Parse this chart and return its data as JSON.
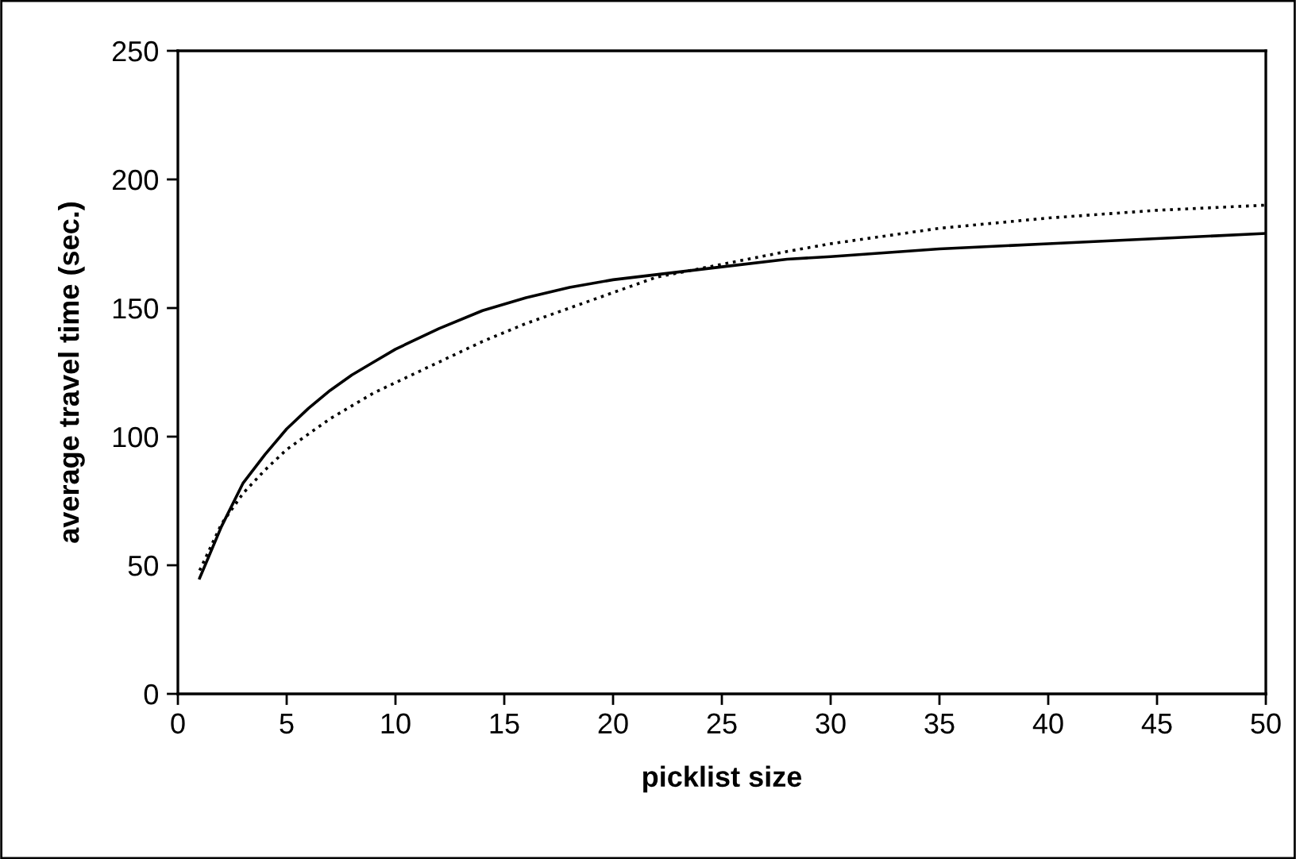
{
  "chart_data": {
    "type": "line",
    "xlabel": "picklist size",
    "ylabel": "average travel time (sec.)",
    "xlim": [
      0,
      50
    ],
    "xticks": [
      0,
      5,
      10,
      15,
      20,
      25,
      30,
      35,
      40,
      45,
      50
    ],
    "ylim": [
      0,
      250
    ],
    "yticks": [
      0,
      50,
      100,
      150,
      200,
      250
    ],
    "grid": false,
    "legend": false,
    "marker": "none",
    "x": [
      1,
      2,
      3,
      4,
      5,
      6,
      7,
      8,
      9,
      10,
      12,
      14,
      16,
      18,
      20,
      22,
      25,
      28,
      30,
      35,
      40,
      45,
      50
    ],
    "series": [
      {
        "color": "#000000",
        "line_style": "solid",
        "values": [
          45,
          65,
          82,
          93,
          103,
          111,
          118,
          124,
          129,
          134,
          142,
          149,
          154,
          158,
          161,
          163,
          166,
          169,
          170,
          173,
          175,
          177,
          179
        ]
      },
      {
        "color": "#000000",
        "line_style": "dotted",
        "values": [
          48,
          66,
          78,
          87,
          95,
          101,
          107,
          112,
          117,
          121,
          129,
          137,
          144,
          150,
          156,
          162,
          167,
          172,
          175,
          181,
          185,
          188,
          190
        ]
      }
    ]
  }
}
